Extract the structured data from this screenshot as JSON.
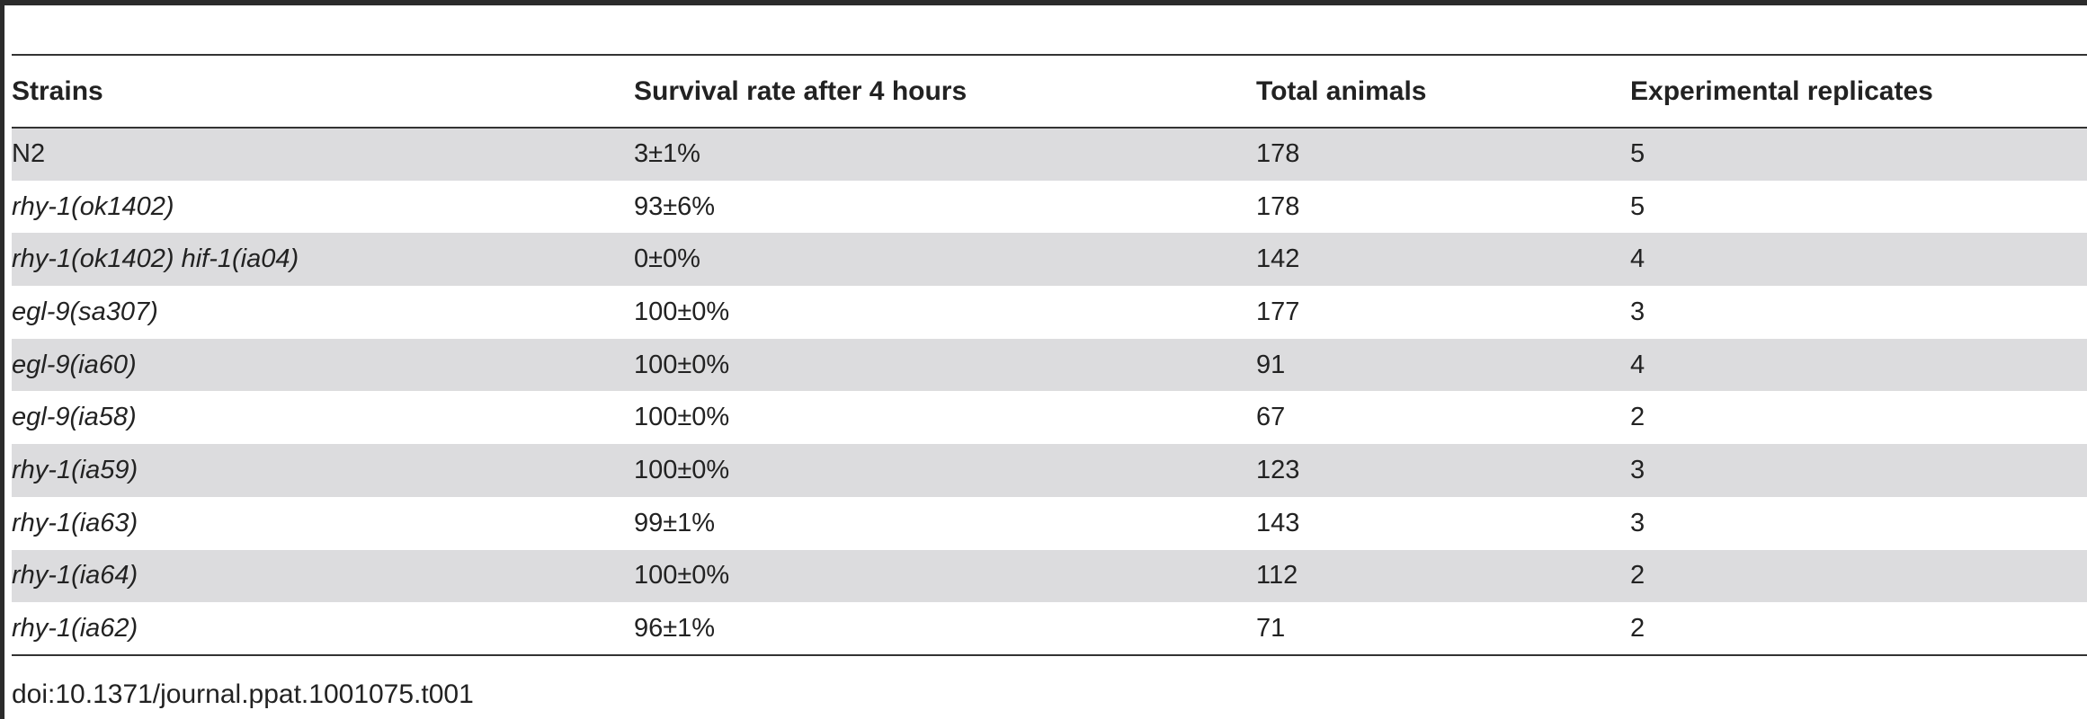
{
  "table": {
    "headers": [
      "Strains",
      "Survival rate after 4 hours",
      "Total animals",
      "Experimental replicates"
    ],
    "rows": [
      {
        "strain": "N2",
        "italic": false,
        "survival": "3±1%",
        "total": "178",
        "replicates": "5"
      },
      {
        "strain": "rhy-1(ok1402)",
        "italic": true,
        "survival": "93±6%",
        "total": "178",
        "replicates": "5"
      },
      {
        "strain": "rhy-1(ok1402) hif-1(ia04)",
        "italic": true,
        "survival": "0±0%",
        "total": "142",
        "replicates": "4"
      },
      {
        "strain": "egl-9(sa307)",
        "italic": true,
        "survival": "100±0%",
        "total": "177",
        "replicates": "3"
      },
      {
        "strain": "egl-9(ia60)",
        "italic": true,
        "survival": "100±0%",
        "total": "91",
        "replicates": "4"
      },
      {
        "strain": "egl-9(ia58)",
        "italic": true,
        "survival": "100±0%",
        "total": "67",
        "replicates": "2"
      },
      {
        "strain": "rhy-1(ia59)",
        "italic": true,
        "survival": "100±0%",
        "total": "123",
        "replicates": "3"
      },
      {
        "strain": "rhy-1(ia63)",
        "italic": true,
        "survival": "99±1%",
        "total": "143",
        "replicates": "3"
      },
      {
        "strain": "rhy-1(ia64)",
        "italic": true,
        "survival": "100±0%",
        "total": "112",
        "replicates": "2"
      },
      {
        "strain": "rhy-1(ia62)",
        "italic": true,
        "survival": "96±1%",
        "total": "71",
        "replicates": "2"
      }
    ]
  },
  "footer": {
    "doi": "doi:10.1371/journal.ppat.1001075.t001"
  },
  "colors": {
    "shaded_row": "#dcdcde",
    "rule": "#333333"
  }
}
